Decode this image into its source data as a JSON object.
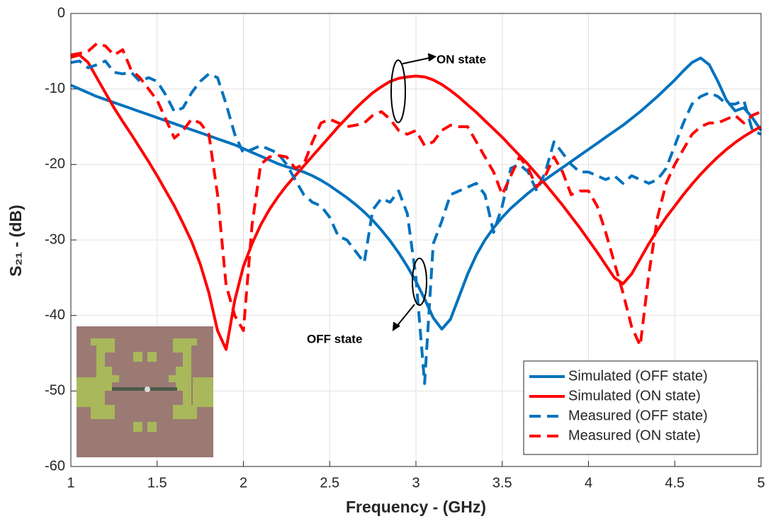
{
  "chart_data": {
    "type": "line",
    "xlabel": "Frequency - (GHz)",
    "ylabel": "S₂₁ - (dB)",
    "xlim": [
      1,
      5
    ],
    "ylim": [
      -60,
      0
    ],
    "xticks": [
      1,
      1.5,
      2,
      2.5,
      3,
      3.5,
      4,
      4.5,
      5
    ],
    "yticks": [
      -60,
      -50,
      -40,
      -30,
      -20,
      -10,
      0
    ],
    "grid": true,
    "legend": "lower right",
    "annotations": [
      "ON state",
      "OFF state"
    ],
    "x": [
      1,
      1.05,
      1.1,
      1.15,
      1.2,
      1.25,
      1.3,
      1.35,
      1.4,
      1.45,
      1.5,
      1.55,
      1.6,
      1.65,
      1.7,
      1.75,
      1.8,
      1.85,
      1.9,
      1.95,
      2,
      2.05,
      2.1,
      2.15,
      2.2,
      2.25,
      2.3,
      2.35,
      2.4,
      2.45,
      2.5,
      2.55,
      2.6,
      2.65,
      2.7,
      2.75,
      2.8,
      2.85,
      2.9,
      2.95,
      3,
      3.05,
      3.1,
      3.15,
      3.2,
      3.25,
      3.3,
      3.35,
      3.4,
      3.45,
      3.5,
      3.55,
      3.6,
      3.65,
      3.7,
      3.75,
      3.8,
      3.85,
      3.9,
      3.95,
      4,
      4.05,
      4.1,
      4.15,
      4.2,
      4.25,
      4.3,
      4.35,
      4.4,
      4.45,
      4.5,
      4.55,
      4.6,
      4.65,
      4.7,
      4.75,
      4.8,
      4.85,
      4.9,
      4.95,
      5
    ],
    "series": [
      {
        "name": "Simulated (OFF state)",
        "color": "#0072bd",
        "style": "solid",
        "values": [
          -9.5,
          -10.0,
          -10.5,
          -11.0,
          -11.4,
          -11.8,
          -12.2,
          -12.6,
          -13.0,
          -13.4,
          -13.8,
          -14.2,
          -14.6,
          -15.0,
          -15.4,
          -15.8,
          -16.2,
          -16.6,
          -17.0,
          -17.4,
          -17.9,
          -18.4,
          -18.9,
          -19.4,
          -19.9,
          -20.3,
          -20.6,
          -21.0,
          -21.5,
          -22.1,
          -22.8,
          -23.6,
          -24.4,
          -25.3,
          -26.3,
          -27.4,
          -28.7,
          -30.1,
          -31.7,
          -33.5,
          -35.5,
          -37.8,
          -40.3,
          -41.8,
          -40.5,
          -37.5,
          -34.5,
          -32.0,
          -30.0,
          -28.4,
          -27.0,
          -25.8,
          -24.8,
          -23.8,
          -22.9,
          -22.0,
          -21.2,
          -20.4,
          -19.6,
          -18.8,
          -18.0,
          -17.2,
          -16.4,
          -15.6,
          -14.8,
          -13.9,
          -13.0,
          -12.0,
          -11.0,
          -9.9,
          -8.8,
          -7.6,
          -6.5,
          -5.9,
          -6.8,
          -9.0,
          -11.5,
          -12.9,
          -12.5,
          -13.8,
          -15.5
        ]
      },
      {
        "name": "Simulated (ON state)",
        "color": "#ff0000",
        "style": "solid",
        "values": [
          -5.8,
          -5.5,
          -6.5,
          -8.5,
          -10.5,
          -12.5,
          -14.3,
          -16.0,
          -17.8,
          -19.6,
          -21.5,
          -23.5,
          -25.5,
          -27.8,
          -30.2,
          -33.2,
          -37.0,
          -42.0,
          -44.5,
          -38.0,
          -33.5,
          -30.5,
          -28.0,
          -26.0,
          -24.3,
          -22.8,
          -21.5,
          -20.2,
          -18.9,
          -17.6,
          -16.3,
          -15.0,
          -13.8,
          -12.6,
          -11.5,
          -10.5,
          -9.7,
          -9.0,
          -8.6,
          -8.4,
          -8.3,
          -8.4,
          -8.8,
          -9.4,
          -10.2,
          -11.1,
          -12.1,
          -13.1,
          -14.2,
          -15.3,
          -16.4,
          -17.6,
          -18.8,
          -20.0,
          -21.3,
          -22.6,
          -24.0,
          -25.4,
          -26.9,
          -28.4,
          -30.0,
          -31.6,
          -33.3,
          -35.0,
          -35.8,
          -34.5,
          -32.5,
          -30.5,
          -28.7,
          -27.0,
          -25.5,
          -24.0,
          -22.6,
          -21.3,
          -20.1,
          -19.0,
          -18.0,
          -17.1,
          -16.3,
          -15.6,
          -15.0
        ]
      },
      {
        "name": "Measured (OFF state)",
        "color": "#0072bd",
        "style": "dashed",
        "values": [
          -6.5,
          -6.3,
          -7.2,
          -6.8,
          -6.3,
          -7.8,
          -8.0,
          -7.8,
          -9.0,
          -8.5,
          -9.0,
          -10.8,
          -13.0,
          -12.5,
          -10.5,
          -9.0,
          -8.0,
          -8.5,
          -12.0,
          -16.0,
          -18.5,
          -18.0,
          -17.5,
          -18.0,
          -18.5,
          -20.0,
          -22.0,
          -24.0,
          -25.0,
          -25.5,
          -27.0,
          -29.5,
          -30.0,
          -31.5,
          -33.0,
          -26.0,
          -24.5,
          -25.0,
          -23.5,
          -26.5,
          -35.0,
          -49.0,
          -30.5,
          -27.5,
          -24.0,
          -23.5,
          -23.0,
          -22.5,
          -24.0,
          -29.0,
          -25.5,
          -20.5,
          -20.0,
          -21.0,
          -23.5,
          -21.0,
          -17.0,
          -18.5,
          -20.0,
          -21.0,
          -21.0,
          -21.5,
          -22.0,
          -21.5,
          -22.5,
          -21.5,
          -22.0,
          -22.5,
          -22.0,
          -20.5,
          -17.5,
          -14.5,
          -12.0,
          -11.0,
          -10.5,
          -11.0,
          -12.0,
          -12.0,
          -11.5,
          -15.5,
          -16.0
        ]
      },
      {
        "name": "Measured (ON state)",
        "color": "#ff0000",
        "style": "dashed",
        "values": [
          -5.5,
          -5.3,
          -5.0,
          -4.0,
          -4.3,
          -5.5,
          -4.8,
          -7.5,
          -8.5,
          -10.0,
          -11.5,
          -14.0,
          -16.5,
          -15.5,
          -14.0,
          -14.5,
          -16.0,
          -24.0,
          -36.0,
          -40.0,
          -42.0,
          -28.0,
          -20.0,
          -19.0,
          -18.8,
          -19.0,
          -20.5,
          -20.0,
          -17.0,
          -14.5,
          -14.0,
          -14.5,
          -15.0,
          -14.8,
          -14.5,
          -13.5,
          -13.0,
          -14.0,
          -15.5,
          -16.0,
          -15.5,
          -17.5,
          -17.0,
          -15.5,
          -14.8,
          -15.0,
          -15.0,
          -17.0,
          -19.0,
          -21.0,
          -24.0,
          -21.5,
          -19.0,
          -20.5,
          -23.0,
          -21.5,
          -19.0,
          -21.0,
          -24.0,
          -23.5,
          -23.5,
          -25.5,
          -29.0,
          -33.0,
          -37.0,
          -41.5,
          -44.0,
          -34.5,
          -27.0,
          -22.5,
          -20.0,
          -18.0,
          -16.0,
          -15.0,
          -14.5,
          -14.5,
          -14.0,
          -13.5,
          -14.5,
          -13.5,
          -13.0
        ]
      }
    ]
  }
}
